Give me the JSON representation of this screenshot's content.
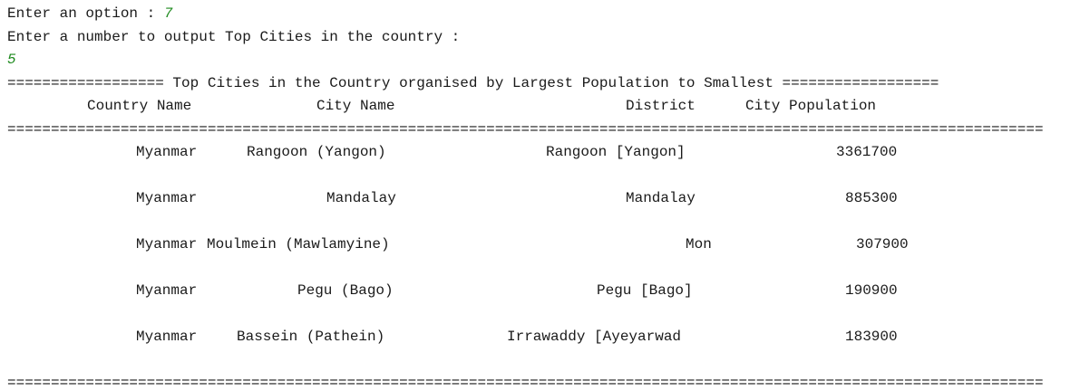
{
  "console": {
    "prompt_option": "Enter an option : ",
    "option_value": "7",
    "prompt_number": "Enter a number to output Top Cities in the country :",
    "number_value": "5",
    "title_line": "================== Top Cities in the Country organised by Largest Population to Smallest ==================",
    "headers": {
      "country": "Country Name",
      "city": "City Name",
      "district": "District",
      "population": "City Population"
    },
    "separator": "=======================================================================================================================",
    "rows": [
      {
        "country": "Myanmar",
        "city": "Rangoon (Yangon)",
        "district": "Rangoon [Yangon]",
        "population": "3361700"
      },
      {
        "country": "Myanmar",
        "city": "Mandalay",
        "district": "Mandalay",
        "population": "885300"
      },
      {
        "country": "Myanmar",
        "city": "Moulmein (Mawlamyine)",
        "district": "Mon",
        "population": "307900"
      },
      {
        "country": "Myanmar",
        "city": "Pegu (Bago)",
        "district": "Pegu [Bago]",
        "population": "190900"
      },
      {
        "country": "Myanmar",
        "city": "Bassein (Pathein)",
        "district": "Irrawaddy [Ayeyarwad",
        "population": "183900"
      }
    ]
  }
}
